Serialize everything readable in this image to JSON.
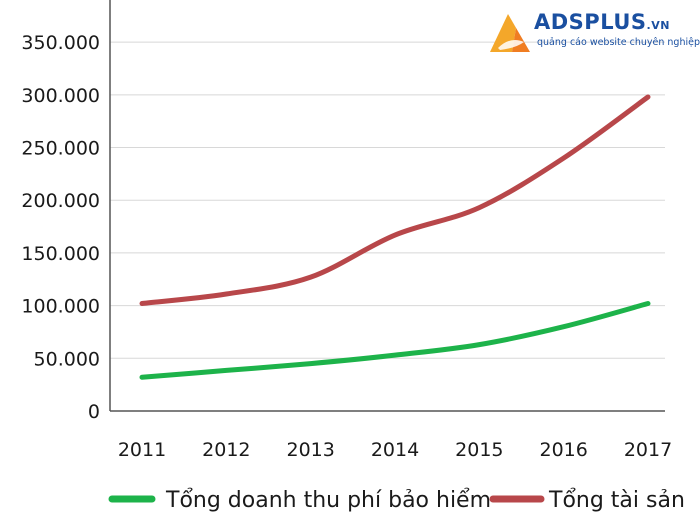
{
  "logo": {
    "brand": "ADSPLUS",
    "suffix": ".VN",
    "tagline": "quảng cáo website chuyên nghiệp"
  },
  "chart_data": {
    "type": "line",
    "categories": [
      "2011",
      "2012",
      "2013",
      "2014",
      "2015",
      "2016",
      "2017"
    ],
    "series": [
      {
        "name": "Tổng doanh thu phí bảo hiểm",
        "color": "#1db34a",
        "values": [
          32000,
          38500,
          45000,
          53000,
          63000,
          80000,
          102000
        ]
      },
      {
        "name": "Tổng tài sản",
        "color": "#b8474a",
        "values": [
          102000,
          111000,
          127000,
          167000,
          193000,
          240000,
          298000
        ]
      }
    ],
    "y_ticks": [
      0,
      50000,
      100000,
      150000,
      200000,
      250000,
      300000,
      350000
    ],
    "y_tick_labels": [
      "0",
      "50.000",
      "100.000",
      "150.000",
      "200.000",
      "250.000",
      "300.000",
      "350.000"
    ],
    "ylim": [
      0,
      390000
    ],
    "grid": true,
    "legend_position": "bottom"
  }
}
